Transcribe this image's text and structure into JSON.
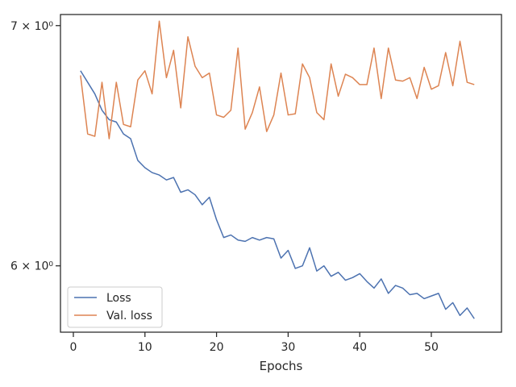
{
  "chart_data": {
    "type": "line",
    "title": "",
    "xlabel": "Epochs",
    "ylabel": "",
    "yscale": "log",
    "xlim": [
      -1.8,
      59.8
    ],
    "ylim": [
      5.75,
      7.05
    ],
    "xticks": [
      0,
      10,
      20,
      30,
      40,
      50
    ],
    "xtick_labels": [
      "0",
      "10",
      "20",
      "30",
      "40",
      "50"
    ],
    "yticks": [
      6,
      7
    ],
    "ytick_labels": [
      "6 × 10⁰",
      "7 × 10⁰"
    ],
    "grid": false,
    "legend_position": "lower-left",
    "x": [
      1,
      2,
      3,
      4,
      5,
      6,
      7,
      8,
      9,
      10,
      11,
      12,
      13,
      14,
      15,
      16,
      17,
      18,
      19,
      20,
      21,
      22,
      23,
      24,
      25,
      26,
      27,
      28,
      29,
      30,
      31,
      32,
      33,
      34,
      35,
      36,
      37,
      38,
      39,
      40,
      41,
      42,
      43,
      44,
      45,
      46,
      47,
      48,
      49,
      50,
      51,
      52,
      53,
      54,
      55,
      56
    ],
    "series": [
      {
        "name": "Loss",
        "color": "#4c72b0",
        "values": [
          6.8,
          6.75,
          6.7,
          6.63,
          6.59,
          6.58,
          6.53,
          6.51,
          6.42,
          6.39,
          6.37,
          6.36,
          6.34,
          6.35,
          6.29,
          6.3,
          6.28,
          6.24,
          6.27,
          6.18,
          6.11,
          6.12,
          6.1,
          6.095,
          6.11,
          6.1,
          6.11,
          6.105,
          6.03,
          6.06,
          5.99,
          6.0,
          6.07,
          5.98,
          6.0,
          5.96,
          5.975,
          5.945,
          5.955,
          5.97,
          5.94,
          5.915,
          5.95,
          5.895,
          5.925,
          5.915,
          5.89,
          5.895,
          5.875,
          5.885,
          5.895,
          5.835,
          5.86,
          5.812,
          5.84,
          5.8
        ]
      },
      {
        "name": "Val. loss",
        "color": "#dd8452",
        "values": [
          6.78,
          6.53,
          6.52,
          6.75,
          6.51,
          6.75,
          6.57,
          6.56,
          6.76,
          6.8,
          6.7,
          7.02,
          6.77,
          6.89,
          6.64,
          6.95,
          6.82,
          6.77,
          6.79,
          6.61,
          6.6,
          6.63,
          6.9,
          6.55,
          6.62,
          6.73,
          6.54,
          6.61,
          6.79,
          6.61,
          6.615,
          6.83,
          6.77,
          6.62,
          6.59,
          6.83,
          6.69,
          6.785,
          6.77,
          6.74,
          6.74,
          6.9,
          6.68,
          6.9,
          6.76,
          6.755,
          6.77,
          6.68,
          6.815,
          6.72,
          6.735,
          6.88,
          6.735,
          6.93,
          6.75,
          6.74
        ]
      }
    ]
  }
}
